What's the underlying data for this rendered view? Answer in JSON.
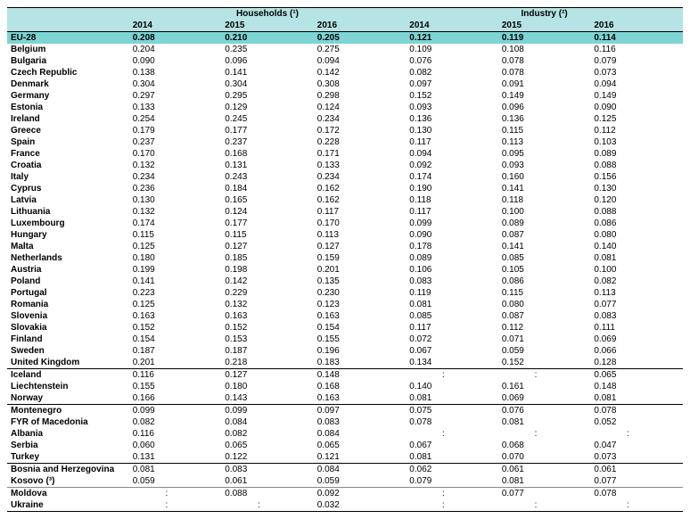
{
  "header": {
    "group1": "Households (¹)",
    "group2": "Industry (²)",
    "years": [
      "2014",
      "2015",
      "2016"
    ]
  },
  "colon": ":",
  "rows": [
    {
      "name": "EU-28",
      "h": [
        "0.208",
        "0.210",
        "0.205"
      ],
      "i": [
        "0.121",
        "0.119",
        "0.114"
      ],
      "hl": true
    },
    {
      "name": "Belgium",
      "h": [
        "0.204",
        "0.235",
        "0.275"
      ],
      "i": [
        "0.109",
        "0.108",
        "0.116"
      ]
    },
    {
      "name": "Bulgaria",
      "h": [
        "0.090",
        "0.096",
        "0.094"
      ],
      "i": [
        "0.076",
        "0.078",
        "0.079"
      ]
    },
    {
      "name": "Czech Republic",
      "h": [
        "0.138",
        "0.141",
        "0.142"
      ],
      "i": [
        "0.082",
        "0.078",
        "0.073"
      ]
    },
    {
      "name": "Denmark",
      "h": [
        "0.304",
        "0.304",
        "0.308"
      ],
      "i": [
        "0.097",
        "0.091",
        "0.094"
      ]
    },
    {
      "name": "Germany",
      "h": [
        "0.297",
        "0.295",
        "0.298"
      ],
      "i": [
        "0.152",
        "0.149",
        "0.149"
      ]
    },
    {
      "name": "Estonia",
      "h": [
        "0.133",
        "0.129",
        "0.124"
      ],
      "i": [
        "0.093",
        "0.096",
        "0.090"
      ]
    },
    {
      "name": "Ireland",
      "h": [
        "0.254",
        "0.245",
        "0.234"
      ],
      "i": [
        "0.136",
        "0.136",
        "0.125"
      ]
    },
    {
      "name": "Greece",
      "h": [
        "0.179",
        "0.177",
        "0.172"
      ],
      "i": [
        "0.130",
        "0.115",
        "0.112"
      ]
    },
    {
      "name": "Spain",
      "h": [
        "0.237",
        "0.237",
        "0.228"
      ],
      "i": [
        "0.117",
        "0.113",
        "0.103"
      ]
    },
    {
      "name": "France",
      "h": [
        "0.170",
        "0.168",
        "0.171"
      ],
      "i": [
        "0.094",
        "0.095",
        "0.089"
      ]
    },
    {
      "name": "Croatia",
      "h": [
        "0.132",
        "0.131",
        "0.133"
      ],
      "i": [
        "0.092",
        "0.093",
        "0.088"
      ]
    },
    {
      "name": "Italy",
      "h": [
        "0.234",
        "0.243",
        "0.234"
      ],
      "i": [
        "0.174",
        "0.160",
        "0.156"
      ]
    },
    {
      "name": "Cyprus",
      "h": [
        "0.236",
        "0.184",
        "0.162"
      ],
      "i": [
        "0.190",
        "0.141",
        "0.130"
      ]
    },
    {
      "name": "Latvia",
      "h": [
        "0.130",
        "0.165",
        "0.162"
      ],
      "i": [
        "0.118",
        "0.118",
        "0.120"
      ]
    },
    {
      "name": "Lithuania",
      "h": [
        "0.132",
        "0.124",
        "0.117"
      ],
      "i": [
        "0.117",
        "0.100",
        "0.088"
      ]
    },
    {
      "name": "Luxembourg",
      "h": [
        "0.174",
        "0.177",
        "0.170"
      ],
      "i": [
        "0.099",
        "0.089",
        "0.086"
      ]
    },
    {
      "name": "Hungary",
      "h": [
        "0.115",
        "0.115",
        "0.113"
      ],
      "i": [
        "0.090",
        "0.087",
        "0.080"
      ]
    },
    {
      "name": "Malta",
      "h": [
        "0.125",
        "0.127",
        "0.127"
      ],
      "i": [
        "0.178",
        "0.141",
        "0.140"
      ]
    },
    {
      "name": "Netherlands",
      "h": [
        "0.180",
        "0.185",
        "0.159"
      ],
      "i": [
        "0.089",
        "0.085",
        "0.081"
      ]
    },
    {
      "name": "Austria",
      "h": [
        "0.199",
        "0.198",
        "0.201"
      ],
      "i": [
        "0.106",
        "0.105",
        "0.100"
      ]
    },
    {
      "name": "Poland",
      "h": [
        "0.141",
        "0.142",
        "0.135"
      ],
      "i": [
        "0.083",
        "0.086",
        "0.082"
      ]
    },
    {
      "name": "Portugal",
      "h": [
        "0.223",
        "0.229",
        "0.230"
      ],
      "i": [
        "0.119",
        "0.115",
        "0.113"
      ]
    },
    {
      "name": "Romania",
      "h": [
        "0.125",
        "0.132",
        "0.123"
      ],
      "i": [
        "0.081",
        "0.080",
        "0.077"
      ]
    },
    {
      "name": "Slovenia",
      "h": [
        "0.163",
        "0.163",
        "0.163"
      ],
      "i": [
        "0.085",
        "0.087",
        "0.083"
      ]
    },
    {
      "name": "Slovakia",
      "h": [
        "0.152",
        "0.152",
        "0.154"
      ],
      "i": [
        "0.117",
        "0.112",
        "0.111"
      ]
    },
    {
      "name": "Finland",
      "h": [
        "0.154",
        "0.153",
        "0.155"
      ],
      "i": [
        "0.072",
        "0.071",
        "0.069"
      ]
    },
    {
      "name": "Sweden",
      "h": [
        "0.187",
        "0.187",
        "0.196"
      ],
      "i": [
        "0.067",
        "0.059",
        "0.066"
      ]
    },
    {
      "name": "United Kingdom",
      "h": [
        "0.201",
        "0.218",
        "0.183"
      ],
      "i": [
        "0.134",
        "0.152",
        "0.128"
      ]
    },
    {
      "name": "Iceland",
      "h": [
        "0.116",
        "0.127",
        "0.148"
      ],
      "i": [
        null,
        null,
        "0.065"
      ],
      "sep": true
    },
    {
      "name": "Liechtenstein",
      "h": [
        "0.155",
        "0.180",
        "0.168"
      ],
      "i": [
        "0.140",
        "0.161",
        "0.148"
      ]
    },
    {
      "name": "Norway",
      "h": [
        "0.166",
        "0.143",
        "0.163"
      ],
      "i": [
        "0.081",
        "0.069",
        "0.081"
      ]
    },
    {
      "name": "Montenegro",
      "h": [
        "0.099",
        "0.099",
        "0.097"
      ],
      "i": [
        "0.075",
        "0.076",
        "0.078"
      ],
      "sep": true
    },
    {
      "name": "FYR of Macedonia",
      "h": [
        "0.082",
        "0.084",
        "0.083"
      ],
      "i": [
        "0.078",
        "0.081",
        "0.052"
      ]
    },
    {
      "name": "Albania",
      "h": [
        "0.116",
        "0.082",
        "0.084"
      ],
      "i": [
        null,
        null,
        null
      ]
    },
    {
      "name": "Serbia",
      "h": [
        "0.060",
        "0.065",
        "0.065"
      ],
      "i": [
        "0.067",
        "0.068",
        "0.047"
      ]
    },
    {
      "name": "Turkey",
      "h": [
        "0.131",
        "0.122",
        "0.121"
      ],
      "i": [
        "0.081",
        "0.070",
        "0.073"
      ]
    },
    {
      "name": "Bosnia and Herzegovina",
      "h": [
        "0.081",
        "0.083",
        "0.084"
      ],
      "i": [
        "0.062",
        "0.061",
        "0.061"
      ],
      "sep": true
    },
    {
      "name": "Kosovo (³)",
      "h": [
        "0.059",
        "0.061",
        "0.059"
      ],
      "i": [
        "0.079",
        "0.081",
        "0.077"
      ]
    },
    {
      "name": "Moldova",
      "h": [
        null,
        "0.088",
        "0.092"
      ],
      "i": [
        null,
        "0.077",
        "0.078"
      ],
      "thinsep": true
    },
    {
      "name": "Ukraine",
      "h": [
        null,
        null,
        "0.032"
      ],
      "i": [
        null,
        null,
        null
      ],
      "bottom": true
    }
  ]
}
